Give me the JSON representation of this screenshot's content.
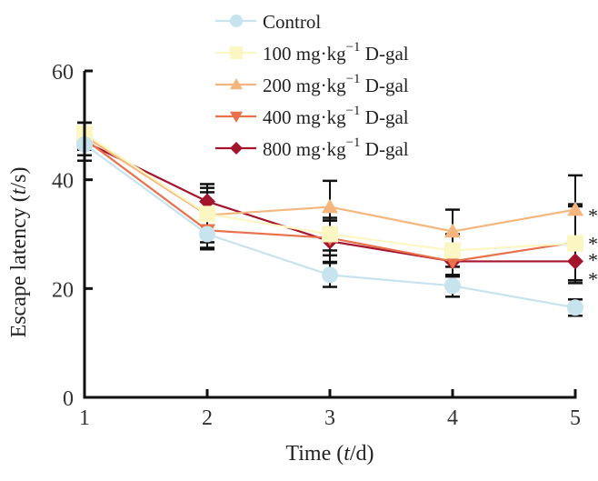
{
  "chart_data": {
    "type": "line",
    "title": "",
    "xlabel": "Time (t/d)",
    "xlabel_parts": {
      "pre": "Time (",
      "italic": "t",
      "post": "/d)"
    },
    "ylabel": "Escape latency (t/s)",
    "ylabel_parts": {
      "pre": "Escape latency (",
      "italic": "t",
      "post": "/s)"
    },
    "x": [
      1,
      2,
      3,
      4,
      5
    ],
    "xlim": [
      1,
      5
    ],
    "ylim": [
      0,
      60
    ],
    "xticks": [
      "1",
      "2",
      "3",
      "4",
      "5"
    ],
    "yticks": [
      "0",
      "20",
      "40",
      "60"
    ],
    "ytick_values": [
      0,
      20,
      40,
      60
    ],
    "grid": false,
    "legend_position": "top-center",
    "series": [
      {
        "name": "Control",
        "label_main": "Control",
        "marker": "circle",
        "color": "#c6e3ee",
        "values": [
          46.5,
          30.0,
          22.5,
          20.5,
          16.5
        ],
        "errors": [
          2.0,
          2.5,
          2.2,
          2.0,
          1.5
        ]
      },
      {
        "name": "100 mg·kg−1 D-gal",
        "label_main": "100 mg·kg",
        "label_sup": "−1",
        "label_tail": " D-gal",
        "marker": "square",
        "color": "#fcf6c2",
        "values": [
          48.5,
          33.7,
          30.0,
          27.0,
          28.3
        ],
        "errors": [
          2.0,
          4.0,
          3.0,
          3.0,
          6.8
        ]
      },
      {
        "name": "200 mg·kg−1 D-gal",
        "label_main": "200 mg·kg",
        "label_sup": "−1",
        "label_tail": " D-gal",
        "marker": "triangle-up",
        "color": "#f4b67d",
        "values": [
          48.0,
          33.5,
          35.0,
          30.5,
          34.5
        ],
        "errors": [
          2.5,
          5.0,
          4.8,
          4.0,
          6.3
        ]
      },
      {
        "name": "400 mg·kg−1 D-gal",
        "label_main": "400 mg·kg",
        "label_sup": "−1",
        "label_tail": " D-gal",
        "marker": "triangle-down",
        "color": "#e8704b",
        "values": [
          47.5,
          30.7,
          29.3,
          25.0,
          28.5
        ],
        "errors": [
          3.0,
          3.5,
          3.2,
          2.5,
          7.0
        ]
      },
      {
        "name": "800 mg·kg−1 D-gal",
        "label_main": "800 mg·kg",
        "label_sup": "−1",
        "label_tail": " D-gal",
        "marker": "diamond",
        "color": "#a3142d",
        "values": [
          47.0,
          36.0,
          28.7,
          25.0,
          25.0
        ],
        "errors": [
          3.5,
          3.2,
          3.8,
          2.8,
          4.0
        ]
      }
    ],
    "annotations": [
      {
        "x": 5,
        "y": 34.5,
        "text": "*"
      },
      {
        "x": 5,
        "y": 29.3,
        "text": "*"
      },
      {
        "x": 5,
        "y": 26.3,
        "text": "*"
      },
      {
        "x": 5,
        "y": 22.8,
        "text": "*"
      }
    ]
  }
}
